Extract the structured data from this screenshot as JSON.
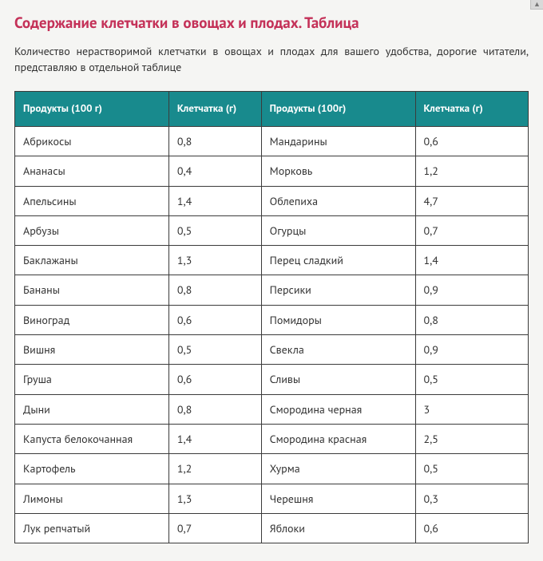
{
  "title": "Содержание клетчатки в овощах и плодах. Таблица",
  "intro": "Количество нерастворимой клетчатки в овощах и плодах для вашего удобства, дорогие читатели, представляю в отдельной таблице",
  "table": {
    "type": "table",
    "header_bg": "#188a8d",
    "header_fg": "#ffffff",
    "border_color": "#3b3b3b",
    "cell_bg": "#ffffff",
    "title_color": "#c43158",
    "body_bg": "#f5f5f3",
    "font_size_header": 13,
    "font_size_cell": 14,
    "columns": [
      "Продукты (100 г)",
      "Клетчатка (г)",
      "Продукты (100г)",
      "Клетчатка (г)"
    ],
    "col_widths_pct": [
      30,
      18,
      30,
      22
    ],
    "rows": [
      [
        "Абрикосы",
        "0,8",
        "Мандарины",
        "0,6"
      ],
      [
        "Ананасы",
        "0,4",
        "Морковь",
        "1,2"
      ],
      [
        "Апельсины",
        "1,4",
        "Облепиха",
        "4,7"
      ],
      [
        "Арбузы",
        "0,5",
        "Огурцы",
        "0,7"
      ],
      [
        "Баклажаны",
        "1,3",
        "Перец сладкий",
        "1,4"
      ],
      [
        "Бананы",
        "0,8",
        "Персики",
        "0,9"
      ],
      [
        "Виноград",
        "0,6",
        "Помидоры",
        "0,8"
      ],
      [
        "Вишня",
        "0,5",
        "Свекла",
        "0,9"
      ],
      [
        "Груша",
        "0,6",
        "Сливы",
        "0,5"
      ],
      [
        "Дыни",
        "0,8",
        "Смородина черная",
        "3"
      ],
      [
        "Капуста белокочанная",
        "1,4",
        "Смородина красная",
        "2,5"
      ],
      [
        "Картофель",
        "1,2",
        "Хурма",
        "0,5"
      ],
      [
        "Лимоны",
        "1,3",
        "Черешня",
        "0,3"
      ],
      [
        "Лук репчатый",
        "0,7",
        "Яблоки",
        "0,6"
      ]
    ]
  }
}
